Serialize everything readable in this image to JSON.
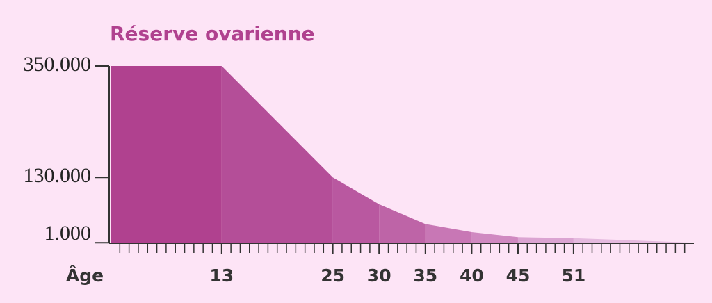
{
  "chart_data": {
    "type": "area",
    "title": "Réserve ovarienne",
    "x_label": "Âge",
    "x": [
      1,
      13,
      25,
      30,
      35,
      40,
      45,
      51,
      64
    ],
    "values": [
      350000,
      350000,
      130000,
      77000,
      38000,
      22000,
      12000,
      10000,
      1000
    ],
    "segment_colors": [
      "#b0418f",
      "#b44e98",
      "#b958a0",
      "#be64a7",
      "#c877b5",
      "#d089c1",
      "#dba4d2",
      "#e5badf"
    ],
    "xlim": [
      1,
      64
    ],
    "xticks": [
      13,
      25,
      30,
      35,
      40,
      45,
      51
    ],
    "ylim": [
      0,
      350000
    ],
    "yticks": [
      {
        "value": 1000,
        "label": "1.000"
      },
      {
        "value": 130000,
        "label": "130.000"
      },
      {
        "value": 350000,
        "label": "350.000"
      }
    ]
  }
}
